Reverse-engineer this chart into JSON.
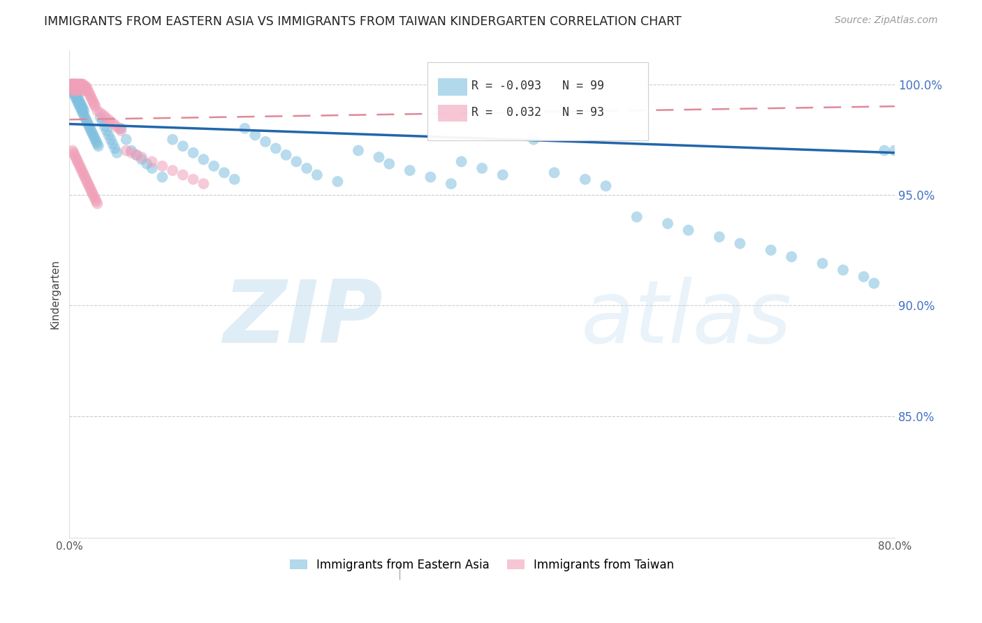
{
  "title": "IMMIGRANTS FROM EASTERN ASIA VS IMMIGRANTS FROM TAIWAN KINDERGARTEN CORRELATION CHART",
  "source": "Source: ZipAtlas.com",
  "ylabel": "Kindergarten",
  "ytick_labels": [
    "100.0%",
    "95.0%",
    "90.0%",
    "85.0%"
  ],
  "ytick_values": [
    1.0,
    0.95,
    0.9,
    0.85
  ],
  "xlim": [
    0.0,
    0.8
  ],
  "ylim": [
    0.795,
    1.015
  ],
  "legend_r1": "R = -0.093",
  "legend_n1": "N = 99",
  "legend_r2": "R =  0.032",
  "legend_n2": "N = 93",
  "blue_color": "#7fbfdf",
  "pink_color": "#f0a0b8",
  "trend_blue": "#2166ac",
  "trend_pink": "#e08898",
  "watermark_zip": "ZIP",
  "watermark_atlas": "atlas",
  "blue_scatter_x": [
    0.001,
    0.002,
    0.003,
    0.003,
    0.004,
    0.004,
    0.005,
    0.005,
    0.006,
    0.006,
    0.007,
    0.007,
    0.008,
    0.008,
    0.009,
    0.009,
    0.01,
    0.01,
    0.011,
    0.011,
    0.012,
    0.012,
    0.013,
    0.013,
    0.014,
    0.014,
    0.015,
    0.016,
    0.017,
    0.018,
    0.019,
    0.02,
    0.021,
    0.022,
    0.023,
    0.024,
    0.025,
    0.026,
    0.027,
    0.028,
    0.03,
    0.032,
    0.034,
    0.036,
    0.038,
    0.04,
    0.042,
    0.044,
    0.046,
    0.05,
    0.055,
    0.06,
    0.065,
    0.07,
    0.075,
    0.08,
    0.09,
    0.1,
    0.11,
    0.12,
    0.13,
    0.14,
    0.15,
    0.16,
    0.17,
    0.18,
    0.19,
    0.2,
    0.21,
    0.22,
    0.23,
    0.24,
    0.26,
    0.28,
    0.3,
    0.31,
    0.33,
    0.35,
    0.37,
    0.38,
    0.4,
    0.42,
    0.45,
    0.47,
    0.5,
    0.52,
    0.55,
    0.58,
    0.6,
    0.63,
    0.65,
    0.68,
    0.7,
    0.73,
    0.75,
    0.77,
    0.78,
    0.79,
    0.8
  ],
  "blue_scatter_y": [
    0.998,
    0.999,
    0.997,
    1.0,
    0.996,
    0.998,
    0.995,
    0.997,
    0.994,
    0.996,
    0.993,
    0.995,
    0.992,
    0.994,
    0.991,
    0.993,
    0.99,
    0.992,
    0.989,
    0.991,
    0.988,
    0.99,
    0.987,
    0.989,
    0.986,
    0.988,
    0.985,
    0.984,
    0.983,
    0.982,
    0.981,
    0.98,
    0.979,
    0.978,
    0.977,
    0.976,
    0.975,
    0.974,
    0.973,
    0.972,
    0.985,
    0.983,
    0.981,
    0.979,
    0.977,
    0.975,
    0.973,
    0.971,
    0.969,
    0.98,
    0.975,
    0.97,
    0.968,
    0.966,
    0.964,
    0.962,
    0.958,
    0.975,
    0.972,
    0.969,
    0.966,
    0.963,
    0.96,
    0.957,
    0.98,
    0.977,
    0.974,
    0.971,
    0.968,
    0.965,
    0.962,
    0.959,
    0.956,
    0.97,
    0.967,
    0.964,
    0.961,
    0.958,
    0.955,
    0.965,
    0.962,
    0.959,
    0.975,
    0.96,
    0.957,
    0.954,
    0.94,
    0.937,
    0.934,
    0.931,
    0.928,
    0.925,
    0.922,
    0.919,
    0.916,
    0.913,
    0.91,
    0.97,
    0.97
  ],
  "pink_scatter_x": [
    0.001,
    0.001,
    0.002,
    0.002,
    0.003,
    0.003,
    0.003,
    0.004,
    0.004,
    0.004,
    0.005,
    0.005,
    0.005,
    0.006,
    0.006,
    0.006,
    0.007,
    0.007,
    0.007,
    0.008,
    0.008,
    0.008,
    0.009,
    0.009,
    0.009,
    0.01,
    0.01,
    0.011,
    0.011,
    0.012,
    0.012,
    0.013,
    0.013,
    0.014,
    0.014,
    0.015,
    0.015,
    0.016,
    0.016,
    0.017,
    0.018,
    0.019,
    0.02,
    0.021,
    0.022,
    0.023,
    0.024,
    0.025,
    0.027,
    0.03,
    0.033,
    0.035,
    0.038,
    0.04,
    0.043,
    0.045,
    0.048,
    0.05,
    0.055,
    0.06,
    0.065,
    0.07,
    0.08,
    0.09,
    0.1,
    0.11,
    0.12,
    0.13,
    0.003,
    0.004,
    0.005,
    0.006,
    0.007,
    0.008,
    0.009,
    0.01,
    0.011,
    0.012,
    0.013,
    0.014,
    0.015,
    0.016,
    0.017,
    0.018,
    0.019,
    0.02,
    0.021,
    0.022,
    0.023,
    0.024,
    0.025,
    0.026,
    0.027
  ],
  "pink_scatter_y": [
    0.999,
    1.0,
    0.998,
    1.0,
    0.999,
    1.0,
    0.998,
    0.999,
    0.997,
    1.0,
    0.998,
    0.999,
    1.0,
    0.997,
    0.999,
    1.0,
    0.998,
    0.999,
    1.0,
    0.997,
    0.999,
    1.0,
    0.998,
    0.999,
    1.0,
    0.998,
    1.0,
    0.999,
    1.0,
    0.998,
    1.0,
    0.999,
    1.0,
    0.998,
    0.997,
    0.999,
    0.998,
    0.997,
    0.999,
    0.998,
    0.997,
    0.996,
    0.995,
    0.994,
    0.993,
    0.992,
    0.991,
    0.99,
    0.988,
    0.987,
    0.986,
    0.985,
    0.984,
    0.983,
    0.982,
    0.981,
    0.98,
    0.979,
    0.97,
    0.969,
    0.968,
    0.967,
    0.965,
    0.963,
    0.961,
    0.959,
    0.957,
    0.955,
    0.97,
    0.969,
    0.968,
    0.967,
    0.966,
    0.965,
    0.964,
    0.963,
    0.962,
    0.961,
    0.96,
    0.959,
    0.958,
    0.957,
    0.956,
    0.955,
    0.954,
    0.953,
    0.952,
    0.951,
    0.95,
    0.949,
    0.948,
    0.947,
    0.946
  ],
  "blue_trend_x0": 0.0,
  "blue_trend_x1": 0.8,
  "blue_trend_y0": 0.982,
  "blue_trend_y1": 0.969,
  "pink_trend_x0": 0.0,
  "pink_trend_x1": 0.8,
  "pink_trend_y0": 0.984,
  "pink_trend_y1": 0.99
}
